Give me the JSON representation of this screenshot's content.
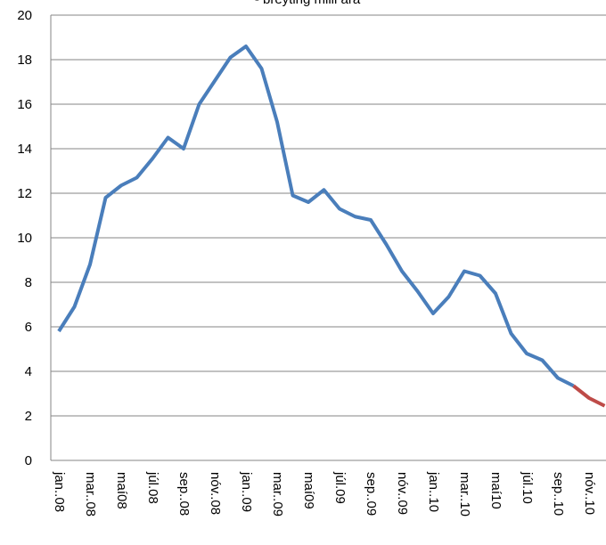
{
  "chart_data": {
    "type": "line",
    "title": "- breyting milli ára",
    "categories": [
      "jan..08",
      null,
      "mar..08",
      null,
      "maí08",
      null,
      "júl.08",
      null,
      "sep..08",
      null,
      "nóv..08",
      null,
      "jan..09",
      null,
      "mar..09",
      null,
      "maí09",
      null,
      "júl.09",
      null,
      "sep..09",
      null,
      "nóv..09",
      null,
      "jan..10",
      null,
      "mar..10",
      null,
      "maí10",
      null,
      "júl.10",
      null,
      "sep..10",
      null,
      "nóv..10",
      null
    ],
    "series": [
      {
        "color": "#4a7ebb",
        "values": [
          5.8,
          6.9,
          8.8,
          11.8,
          12.35,
          12.7,
          13.55,
          14.5,
          14.0,
          16.0,
          17.05,
          18.1,
          18.6,
          17.6,
          15.2,
          11.9,
          11.6,
          12.15,
          11.3,
          10.95,
          10.8,
          9.7,
          8.5,
          7.6,
          6.6,
          7.35,
          8.5,
          8.3,
          7.5,
          5.7,
          4.8,
          4.5,
          3.7,
          3.35,
          null,
          null
        ]
      },
      {
        "color": "#be4b48",
        "values": [
          null,
          null,
          null,
          null,
          null,
          null,
          null,
          null,
          null,
          null,
          null,
          null,
          null,
          null,
          null,
          null,
          null,
          null,
          null,
          null,
          null,
          null,
          null,
          null,
          null,
          null,
          null,
          null,
          null,
          null,
          null,
          null,
          null,
          3.35,
          2.8,
          2.45
        ]
      }
    ],
    "ylim": [
      0,
      20
    ],
    "yticks": [
      0,
      2,
      4,
      6,
      8,
      10,
      12,
      14,
      16,
      18,
      20
    ],
    "grid": true
  }
}
